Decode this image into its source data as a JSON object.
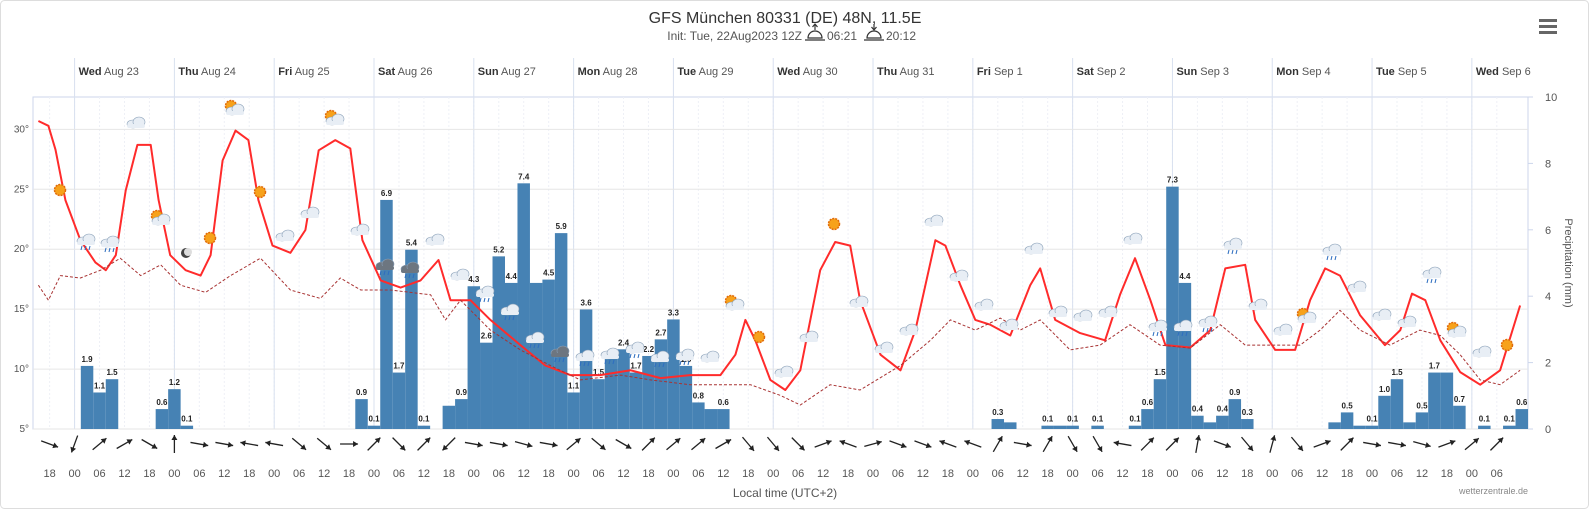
{
  "chart_data": {
    "type": "meteogram",
    "title": "GFS München 80331 (DE) 48N, 11.5E",
    "subtitle": "Init: Tue, 22Aug2023 12Z",
    "sunrise": "06:21",
    "sunset": "20:12",
    "x_label": "Local time (UTC+2)",
    "y2_label": "Precipitation (mm)",
    "credit": "wetterzentrale.de",
    "grid": true,
    "xlim": [
      -10,
      349.5
    ],
    "xticks": [
      {
        "value": -6,
        "label": "18"
      },
      {
        "value": 0,
        "label": "00"
      },
      {
        "value": 6,
        "label": "06"
      },
      {
        "value": 12,
        "label": "12"
      },
      {
        "value": 18,
        "label": "18"
      },
      {
        "value": 24,
        "label": "00"
      },
      {
        "value": 30,
        "label": "06"
      },
      {
        "value": 36,
        "label": "12"
      },
      {
        "value": 42,
        "label": "18"
      },
      {
        "value": 48,
        "label": "00"
      },
      {
        "value": 54,
        "label": "06"
      },
      {
        "value": 60,
        "label": "12"
      },
      {
        "value": 66,
        "label": "18"
      },
      {
        "value": 72,
        "label": "00"
      },
      {
        "value": 78,
        "label": "06"
      },
      {
        "value": 84,
        "label": "12"
      },
      {
        "value": 90,
        "label": "18"
      },
      {
        "value": 96,
        "label": "00"
      },
      {
        "value": 102,
        "label": "06"
      },
      {
        "value": 108,
        "label": "12"
      },
      {
        "value": 114,
        "label": "18"
      },
      {
        "value": 120,
        "label": "00"
      },
      {
        "value": 126,
        "label": "06"
      },
      {
        "value": 132,
        "label": "12"
      },
      {
        "value": 138,
        "label": "18"
      },
      {
        "value": 144,
        "label": "00"
      },
      {
        "value": 150,
        "label": "06"
      },
      {
        "value": 156,
        "label": "12"
      },
      {
        "value": 162,
        "label": "18"
      },
      {
        "value": 168,
        "label": "00"
      },
      {
        "value": 174,
        "label": "06"
      },
      {
        "value": 180,
        "label": "12"
      },
      {
        "value": 186,
        "label": "18"
      },
      {
        "value": 192,
        "label": "00"
      },
      {
        "value": 198,
        "label": "06"
      },
      {
        "value": 204,
        "label": "12"
      },
      {
        "value": 210,
        "label": "18"
      },
      {
        "value": 216,
        "label": "00"
      },
      {
        "value": 222,
        "label": "06"
      },
      {
        "value": 228,
        "label": "12"
      },
      {
        "value": 234,
        "label": "18"
      },
      {
        "value": 240,
        "label": "00"
      },
      {
        "value": 246,
        "label": "06"
      },
      {
        "value": 252,
        "label": "12"
      },
      {
        "value": 258,
        "label": "18"
      },
      {
        "value": 264,
        "label": "00"
      },
      {
        "value": 270,
        "label": "06"
      },
      {
        "value": 276,
        "label": "12"
      },
      {
        "value": 282,
        "label": "18"
      },
      {
        "value": 288,
        "label": "00"
      },
      {
        "value": 294,
        "label": "06"
      },
      {
        "value": 300,
        "label": "12"
      },
      {
        "value": 306,
        "label": "18"
      },
      {
        "value": 312,
        "label": "00"
      },
      {
        "value": 318,
        "label": "06"
      },
      {
        "value": 324,
        "label": "12"
      },
      {
        "value": 330,
        "label": "18"
      },
      {
        "value": 336,
        "label": "00"
      },
      {
        "value": 342,
        "label": "06"
      }
    ],
    "top_xticks": [
      {
        "value": 0,
        "label": "Wed Aug 23"
      },
      {
        "value": 24,
        "label": "Thu Aug 24"
      },
      {
        "value": 48,
        "label": "Fri Aug 25"
      },
      {
        "value": 72,
        "label": "Sat Aug 26"
      },
      {
        "value": 96,
        "label": "Sun Aug 27"
      },
      {
        "value": 120,
        "label": "Mon Aug 28"
      },
      {
        "value": 144,
        "label": "Tue Aug 29"
      },
      {
        "value": 168,
        "label": "Wed Aug 30"
      },
      {
        "value": 192,
        "label": "Thu Aug 31"
      },
      {
        "value": 216,
        "label": "Fri Sep 1"
      },
      {
        "value": 240,
        "label": "Sat Sep 2"
      },
      {
        "value": 264,
        "label": "Sun Sep 3"
      },
      {
        "value": 288,
        "label": "Mon Sep 4"
      },
      {
        "value": 312,
        "label": "Tue Sep 5"
      },
      {
        "value": 336,
        "label": "Wed Sep 6"
      }
    ],
    "ylim": [
      5,
      32.7
    ],
    "yticks": [
      {
        "value": 5,
        "label": "5°"
      },
      {
        "value": 10,
        "label": "10°"
      },
      {
        "value": 15,
        "label": "15°"
      },
      {
        "value": 20,
        "label": "20°"
      },
      {
        "value": 25,
        "label": "25°"
      },
      {
        "value": 30,
        "label": "30°"
      }
    ],
    "y2lim": [
      0,
      10
    ],
    "y2ticks": [
      0,
      2,
      4,
      6,
      8,
      10
    ],
    "series": [
      {
        "color": "#ff2b2b",
        "style": "solid",
        "x": [
          -8.7,
          -6.3,
          -4.6,
          -2.2,
          1.4,
          5,
          7.5,
          9.9,
          12.3,
          15.1,
          18.3,
          20.2,
          23,
          26.7,
          30.3,
          32.7,
          35.6,
          38.7,
          41.8,
          44.2,
          47.6,
          51.9,
          55.5,
          58.7,
          62.7,
          66.3,
          69.2,
          73.6,
          78.4,
          83.2,
          87.5,
          90.4,
          95.2,
          100,
          107.2,
          113.2,
          119.2,
          126.4,
          133.7,
          140.9,
          148,
          155.3,
          158.9,
          161.3,
          163.7,
          167.3,
          170.9,
          174.5,
          179.3,
          182.9,
          186.5,
          188.9,
          193.8,
          198.6,
          202.2,
          207,
          209.4,
          213,
          216.6,
          220.2,
          225,
          229.8,
          232.2,
          235.8,
          241.8,
          247.8,
          251.4,
          255,
          258.7,
          262.3,
          268.3,
          273.1,
          276.7,
          281.5,
          283.9,
          288.7,
          293.5,
          297.1,
          300.7,
          304.3,
          309.1,
          315.1,
          318.8,
          321.6,
          324.8,
          328.4,
          333.2,
          338,
          342.8,
          347.6
        ],
        "values": [
          30.7,
          30.3,
          28.3,
          24.1,
          20.75,
          18.9,
          18.25,
          19.5,
          24.9,
          28.7,
          28.7,
          24.1,
          19.5,
          18.25,
          17.8,
          19.5,
          27.4,
          29.9,
          29.1,
          24.1,
          20.3,
          19.7,
          21.6,
          28.25,
          29.1,
          28.4,
          20.75,
          17.4,
          16.8,
          17.4,
          19.1,
          15.75,
          15.75,
          14.1,
          12,
          10.3,
          9.5,
          9.5,
          9.9,
          9.25,
          9.5,
          9.5,
          11.2,
          14.1,
          12.4,
          9.1,
          8.25,
          9.9,
          18.25,
          20.6,
          20.3,
          15.75,
          11.2,
          9.9,
          13.25,
          20.75,
          20.3,
          17,
          14.1,
          13.7,
          12.8,
          17,
          18.4,
          14.1,
          13,
          12.4,
          16.2,
          19.25,
          15.75,
          12,
          11.8,
          13.25,
          18.4,
          18.7,
          14.1,
          11.6,
          11.6,
          15.75,
          18.4,
          17.8,
          14.5,
          12,
          13.25,
          16.3,
          15.75,
          12.4,
          9.75,
          8.7,
          9.9,
          15.3
        ]
      },
      {
        "color": "#a83232",
        "style": "dashed",
        "x": [
          -8.7,
          -6.3,
          -3.4,
          1.4,
          6.25,
          11,
          15.9,
          20.7,
          25.5,
          31.5,
          37.5,
          44.7,
          51.9,
          59.1,
          63.9,
          68.8,
          76,
          85.6,
          89.2,
          92.8,
          100,
          107.2,
          114.4,
          121.6,
          131.3,
          138.5,
          148,
          155.3,
          162.5,
          169.7,
          174.5,
          181.7,
          188.9,
          198.6,
          205.8,
          210.6,
          216.6,
          222.6,
          227.4,
          232.2,
          239.4,
          246.6,
          253.8,
          261,
          268.3,
          275.5,
          281.5,
          287.5,
          294.7,
          299.5,
          304.3,
          309.1,
          316.3,
          323.5,
          328.4,
          333.2,
          338,
          342.8,
          347.6
        ],
        "values": [
          17,
          15.75,
          17.8,
          17.6,
          18.25,
          19.25,
          17.8,
          18.7,
          17,
          16.4,
          17.8,
          19.25,
          16.6,
          15.9,
          17.6,
          16.6,
          16.6,
          16.2,
          14.1,
          15.75,
          13.25,
          11.6,
          10.3,
          9.1,
          9.5,
          9.1,
          8.7,
          8.7,
          8.7,
          7.8,
          7,
          8.7,
          8.25,
          10.3,
          12.4,
          14.1,
          13.25,
          14.25,
          13.25,
          14.1,
          11.6,
          12,
          13.7,
          12,
          11.75,
          13.7,
          12,
          12,
          12,
          13.25,
          14.9,
          13.25,
          12,
          13.25,
          12.8,
          11.2,
          9.1,
          8.7,
          9.9
        ]
      }
    ],
    "precipitation": {
      "color": "#4682b4",
      "axis": "y2",
      "width": 3,
      "x": [
        3,
        6,
        9,
        21,
        24,
        27,
        69,
        72,
        75,
        78,
        81,
        84,
        90,
        93,
        96,
        99,
        102,
        105,
        108,
        111,
        114,
        117,
        120,
        123,
        126,
        129,
        132,
        135,
        138,
        141,
        144,
        147,
        150,
        153,
        156,
        222,
        225,
        234,
        237,
        240,
        246,
        255,
        258,
        261,
        264,
        267,
        270,
        273,
        276,
        279,
        282,
        303,
        306,
        309,
        312,
        315,
        318,
        321,
        324,
        327,
        330,
        333,
        339,
        345,
        348
      ],
      "values": [
        1.9,
        1.1,
        1.5,
        0.6,
        1.2,
        0.1,
        0.9,
        0.1,
        6.9,
        1.7,
        5.4,
        0.1,
        0.7,
        0.9,
        4.3,
        2.6,
        5.2,
        4.4,
        7.4,
        4.4,
        4.5,
        5.9,
        1.1,
        3.6,
        1.5,
        2.2,
        2.4,
        1.7,
        2.2,
        2.7,
        3.3,
        1.9,
        0.8,
        0.6,
        0.6,
        0.3,
        0.2,
        0.1,
        0.1,
        0.1,
        0.1,
        0.1,
        0.6,
        1.5,
        7.3,
        4.4,
        0.4,
        0.2,
        0.4,
        0.9,
        0.3,
        0.2,
        0.5,
        0.1,
        0.1,
        1.0,
        1.5,
        0.2,
        0.5,
        1.7,
        1.7,
        0.7,
        0.1,
        0.1,
        0.6
      ],
      "value_labels": [
        "1.9",
        "1.1",
        "1.5",
        "0.6",
        "1.2",
        "0.1",
        "0.9",
        "0.1",
        "6.9",
        "1.7",
        "5.4",
        "0.1",
        null,
        "0.9",
        "4.3",
        "2.6",
        "5.2",
        "4.4",
        "7.4",
        null,
        "4.5",
        "5.9",
        "1.1",
        "3.6",
        "1.5",
        null,
        "2.4",
        "1.7",
        "2.2",
        "2.7",
        "3.3",
        "1.9",
        "0.8",
        null,
        "0.6",
        "0.3",
        null,
        "0.1",
        null,
        "0.1",
        "0.1",
        "0.1",
        "0.6",
        "1.5",
        "7.3",
        "4.4",
        "0.4",
        null,
        "0.4",
        "0.9",
        "0.3",
        null,
        "0.5",
        null,
        "0.1",
        "1.0",
        "1.5",
        null,
        "0.5",
        "1.7",
        null,
        "0.7",
        "0.1",
        "0.1",
        "0.6"
      ]
    },
    "wind": {
      "x": [
        -6,
        0,
        6,
        12,
        18,
        24,
        30,
        36,
        42,
        48,
        54,
        60,
        66,
        72,
        78,
        84,
        90,
        96,
        102,
        108,
        114,
        120,
        126,
        132,
        138,
        144,
        150,
        156,
        162,
        168,
        174,
        180,
        186,
        192,
        198,
        204,
        210,
        216,
        222,
        228,
        234,
        240,
        246,
        252,
        258,
        264,
        270,
        276,
        282,
        288,
        294,
        300,
        306,
        312,
        318,
        324,
        330,
        336,
        342
      ],
      "direction": [
        20,
        110,
        -40,
        -30,
        30,
        -90,
        10,
        10,
        190,
        190,
        40,
        40,
        0,
        -45,
        45,
        -45,
        135,
        10,
        10,
        15,
        10,
        -40,
        40,
        30,
        -45,
        -40,
        -40,
        -30,
        50,
        50,
        45,
        -20,
        200,
        -15,
        20,
        20,
        200,
        200,
        -60,
        10,
        -60,
        60,
        60,
        190,
        -45,
        -45,
        -80,
        20,
        50,
        -75,
        50,
        -20,
        -45,
        10,
        10,
        15,
        -20,
        -40,
        -45
      ]
    }
  }
}
